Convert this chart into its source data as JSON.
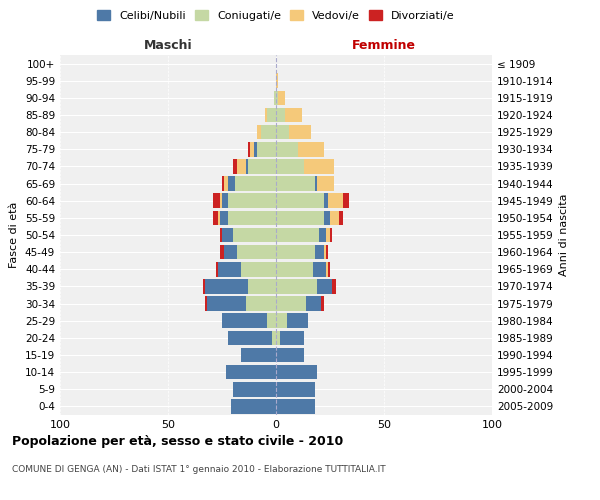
{
  "age_groups": [
    "0-4",
    "5-9",
    "10-14",
    "15-19",
    "20-24",
    "25-29",
    "30-34",
    "35-39",
    "40-44",
    "45-49",
    "50-54",
    "55-59",
    "60-64",
    "65-69",
    "70-74",
    "75-79",
    "80-84",
    "85-89",
    "90-94",
    "95-99",
    "100+"
  ],
  "birth_years": [
    "2005-2009",
    "2000-2004",
    "1995-1999",
    "1990-1994",
    "1985-1989",
    "1980-1984",
    "1975-1979",
    "1970-1974",
    "1965-1969",
    "1960-1964",
    "1955-1959",
    "1950-1954",
    "1945-1949",
    "1940-1944",
    "1935-1939",
    "1930-1934",
    "1925-1929",
    "1920-1924",
    "1915-1919",
    "1910-1914",
    "≤ 1909"
  ],
  "maschi": {
    "celibi": [
      21,
      20,
      23,
      16,
      20,
      21,
      18,
      20,
      11,
      6,
      5,
      4,
      3,
      3,
      1,
      1,
      0,
      0,
      0,
      0,
      0
    ],
    "coniugati": [
      0,
      0,
      0,
      0,
      2,
      4,
      14,
      13,
      16,
      18,
      20,
      22,
      22,
      19,
      13,
      9,
      7,
      4,
      1,
      0,
      0
    ],
    "vedovi": [
      0,
      0,
      0,
      0,
      0,
      0,
      0,
      0,
      0,
      0,
      0,
      1,
      1,
      2,
      4,
      2,
      2,
      1,
      0,
      0,
      0
    ],
    "divorziati": [
      0,
      0,
      0,
      0,
      0,
      0,
      1,
      1,
      1,
      2,
      1,
      2,
      3,
      1,
      2,
      1,
      0,
      0,
      0,
      0,
      0
    ]
  },
  "femmine": {
    "nubili": [
      18,
      18,
      19,
      13,
      11,
      10,
      7,
      7,
      6,
      4,
      3,
      3,
      2,
      1,
      0,
      0,
      0,
      0,
      0,
      0,
      0
    ],
    "coniugate": [
      0,
      0,
      0,
      0,
      2,
      5,
      14,
      19,
      17,
      18,
      20,
      22,
      22,
      18,
      13,
      10,
      6,
      4,
      1,
      0,
      0
    ],
    "vedove": [
      0,
      0,
      0,
      0,
      0,
      0,
      0,
      0,
      1,
      1,
      2,
      4,
      7,
      8,
      14,
      12,
      10,
      8,
      3,
      1,
      0
    ],
    "divorziate": [
      0,
      0,
      0,
      0,
      0,
      0,
      1,
      2,
      1,
      1,
      1,
      2,
      3,
      0,
      0,
      0,
      0,
      0,
      0,
      0,
      0
    ]
  },
  "colors": {
    "celibi": "#4e79a7",
    "coniugati": "#c5d8a4",
    "vedovi": "#f5c97a",
    "divorziati": "#cc2222"
  },
  "xlim": [
    -100,
    100
  ],
  "xticks": [
    -100,
    -50,
    0,
    50,
    100
  ],
  "xticklabels": [
    "100",
    "50",
    "0",
    "50",
    "100"
  ],
  "title": "Popolazione per età, sesso e stato civile - 2010",
  "subtitle": "COMUNE DI GENGA (AN) - Dati ISTAT 1° gennaio 2010 - Elaborazione TUTTITALIA.IT",
  "ylabel_left": "Fasce di età",
  "ylabel_right": "Anni di nascita",
  "label_maschi": "Maschi",
  "label_femmine": "Femmine",
  "legend_labels": [
    "Celibi/Nubili",
    "Coniugati/e",
    "Vedovi/e",
    "Divorziati/e"
  ],
  "background_color": "#ffffff",
  "plot_bg": "#f0f0f0",
  "grid_color": "#ffffff"
}
